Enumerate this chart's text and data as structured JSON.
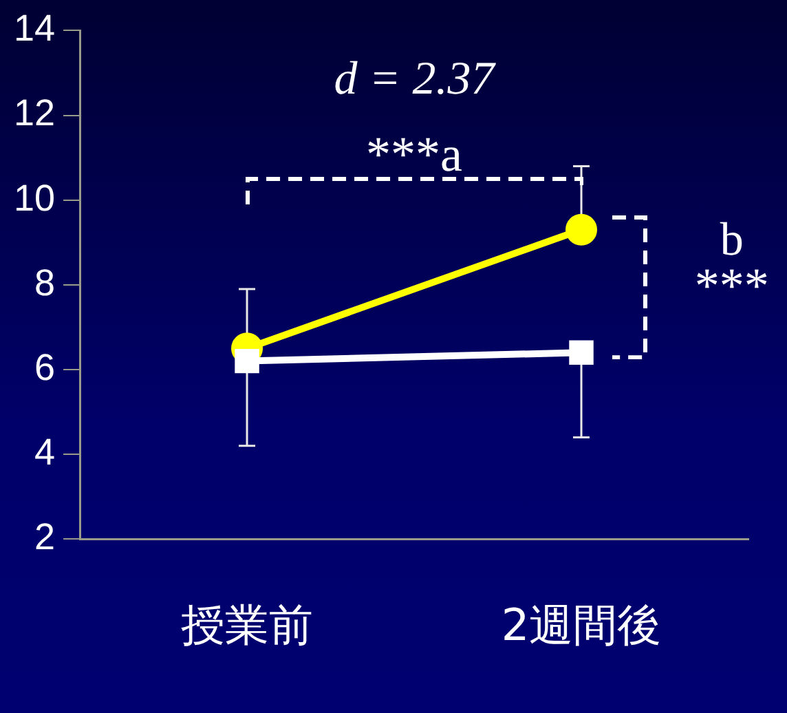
{
  "chart_data": {
    "type": "line",
    "categories": [
      "授業前",
      "2週間後"
    ],
    "series": [
      {
        "color": "#ffff00",
        "values": [
          6.5,
          9.3
        ],
        "marker": "circle",
        "errors": [
          [
            6.5,
            7.9
          ],
          [
            9.3,
            10.8
          ]
        ]
      },
      {
        "color": "#ffffff",
        "values": [
          6.2,
          6.4
        ],
        "marker": "square",
        "errors": [
          [
            4.2,
            6.2
          ],
          [
            4.4,
            6.4
          ]
        ]
      }
    ],
    "ylim": [
      2,
      14
    ],
    "yticks": [
      2,
      4,
      6,
      8,
      10,
      12,
      14
    ],
    "grid": false,
    "legend": false,
    "annotations": [
      "d = 2.37",
      "***a",
      "b",
      "***"
    ]
  }
}
